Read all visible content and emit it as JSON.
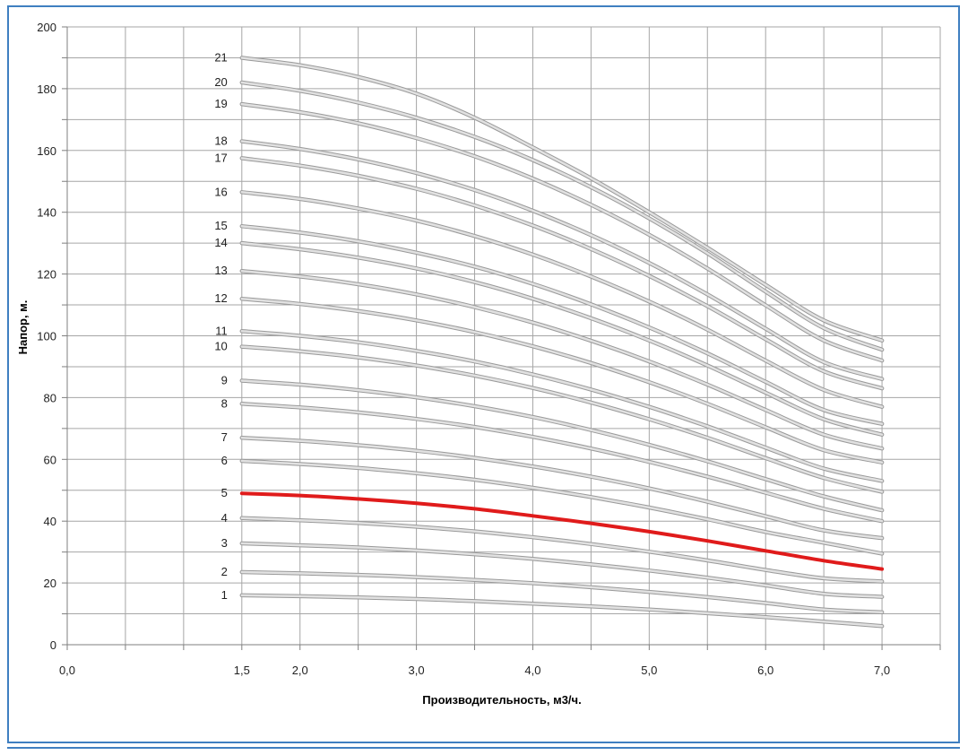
{
  "chart_data": {
    "type": "line",
    "title": "",
    "xlabel": "Производительность, м3/ч.",
    "ylabel": "Напор, м.",
    "xlim": [
      0,
      7.5
    ],
    "ylim": [
      0,
      200
    ],
    "x_ticks": [
      "0,0",
      "1,5",
      "2,0",
      "3,0",
      "4,0",
      "5,0",
      "6,0",
      "7,0"
    ],
    "x_tick_values": [
      0,
      1.5,
      2,
      3,
      4,
      5,
      6,
      7
    ],
    "y_ticks": [
      "0",
      "20",
      "40",
      "60",
      "80",
      "100",
      "120",
      "140",
      "160",
      "180",
      "200"
    ],
    "y_tick_values": [
      0,
      20,
      40,
      60,
      80,
      100,
      120,
      140,
      160,
      180,
      200
    ],
    "grid": true,
    "x": [
      1.5,
      2.0,
      2.5,
      3.0,
      3.5,
      4.0,
      4.5,
      5.0,
      5.5,
      6.0,
      6.5,
      7.0
    ],
    "series": [
      {
        "name": "1",
        "highlight": false,
        "values": [
          16,
          15.7,
          15.3,
          14.8,
          14.1,
          13.3,
          12.4,
          11.4,
          10.2,
          8.9,
          7.5,
          6
        ]
      },
      {
        "name": "2",
        "highlight": false,
        "values": [
          23.5,
          23.1,
          22.6,
          21.9,
          21.0,
          19.9,
          18.6,
          17.1,
          15.4,
          13.5,
          11.4,
          10.5
        ]
      },
      {
        "name": "3",
        "highlight": false,
        "values": [
          32.8,
          32.2,
          31.5,
          30.5,
          29.3,
          27.8,
          26.0,
          24.0,
          21.7,
          19.2,
          16.5,
          15.5
        ]
      },
      {
        "name": "4",
        "highlight": false,
        "values": [
          41,
          40.3,
          39.4,
          38.2,
          36.7,
          34.8,
          32.6,
          30.1,
          27.3,
          24.2,
          21.5,
          20.5
        ]
      },
      {
        "name": "5",
        "highlight": true,
        "values": [
          49,
          48.3,
          47.2,
          45.8,
          44.0,
          41.7,
          39.3,
          36.6,
          33.6,
          30.4,
          27.2,
          24.5
        ]
      },
      {
        "name": "6",
        "highlight": false,
        "values": [
          59.5,
          58.5,
          57.2,
          55.5,
          53.4,
          50.8,
          47.8,
          44.4,
          40.6,
          36.5,
          33.0,
          29.5
        ]
      },
      {
        "name": "7",
        "highlight": false,
        "values": [
          67,
          66.0,
          64.6,
          62.8,
          60.5,
          57.7,
          54.4,
          50.6,
          46.3,
          41.6,
          37.0,
          34.5
        ]
      },
      {
        "name": "8",
        "highlight": false,
        "values": [
          78,
          76.8,
          75.2,
          73.1,
          70.5,
          67.3,
          63.5,
          59.2,
          54.4,
          49.2,
          44.0,
          40
        ]
      },
      {
        "name": "9",
        "highlight": false,
        "values": [
          85.5,
          84.2,
          82.4,
          80.1,
          77.2,
          73.7,
          69.5,
          64.7,
          59.4,
          53.6,
          48.0,
          43.5
        ]
      },
      {
        "name": "10",
        "highlight": false,
        "values": [
          96.5,
          95.0,
          93.0,
          90.4,
          87.1,
          83.1,
          78.4,
          73.0,
          67.0,
          60.4,
          54.0,
          49.5
        ]
      },
      {
        "name": "11",
        "highlight": false,
        "values": [
          101.5,
          100.0,
          97.9,
          95.1,
          91.7,
          87.5,
          82.6,
          77.0,
          70.7,
          63.8,
          57.0,
          53
        ]
      },
      {
        "name": "12",
        "highlight": false,
        "values": [
          112,
          110.3,
          108.0,
          105.0,
          101.2,
          96.6,
          91.2,
          85.0,
          78.0,
          70.4,
          63.0,
          59
        ]
      },
      {
        "name": "13",
        "highlight": false,
        "values": [
          121,
          119.2,
          116.7,
          113.4,
          109.3,
          104.3,
          98.4,
          91.7,
          84.2,
          76.0,
          68.0,
          63.5
        ]
      },
      {
        "name": "14",
        "highlight": false,
        "values": [
          130,
          128.0,
          125.3,
          121.8,
          117.4,
          112.0,
          105.7,
          98.5,
          90.4,
          81.6,
          73.0,
          68
        ]
      },
      {
        "name": "15",
        "highlight": false,
        "values": [
          135.5,
          133.4,
          130.6,
          126.9,
          122.4,
          116.8,
          110.2,
          102.7,
          94.3,
          85.1,
          76.0,
          71.5
        ]
      },
      {
        "name": "16",
        "highlight": false,
        "values": [
          146.5,
          144.3,
          141.2,
          137.3,
          132.3,
          126.3,
          119.2,
          111.1,
          102.0,
          92.0,
          82.5,
          77
        ]
      },
      {
        "name": "17",
        "highlight": false,
        "values": [
          157.5,
          155.1,
          151.8,
          147.6,
          142.2,
          135.7,
          128.1,
          119.4,
          109.6,
          98.9,
          88.5,
          83
        ]
      },
      {
        "name": "18",
        "highlight": false,
        "values": [
          163,
          160.5,
          157.1,
          152.7,
          147.2,
          140.5,
          132.6,
          123.6,
          113.4,
          102.3,
          91.5,
          86
        ]
      },
      {
        "name": "19",
        "highlight": false,
        "values": [
          175,
          172.4,
          168.8,
          164.0,
          158.1,
          150.9,
          142.4,
          132.7,
          121.8,
          109.9,
          98.5,
          92
        ]
      },
      {
        "name": "20",
        "highlight": false,
        "values": [
          182,
          179.3,
          175.5,
          170.6,
          164.4,
          156.9,
          148.1,
          138.0,
          126.7,
          114.3,
          102.5,
          95.5
        ]
      },
      {
        "name": "21",
        "highlight": false,
        "values": [
          190,
          187.6,
          183.8,
          178.4,
          170.6,
          161.0,
          151.0,
          140.0,
          128.5,
          116.5,
          105.0,
          98.5
        ]
      }
    ],
    "colors": {
      "curve": "#e1e1e1",
      "curve_outline": "#9a9a9a",
      "highlight": "#e01b1b",
      "grid": "#a6a6a6",
      "axis": "#7f7f7f"
    }
  }
}
